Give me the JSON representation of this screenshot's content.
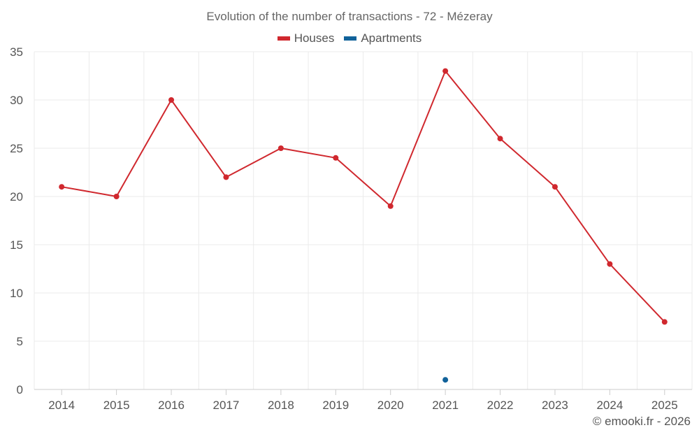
{
  "chart_data": {
    "type": "line",
    "title": "Evolution of the number of transactions - 72 - Mézeray",
    "categories": [
      "2014",
      "2015",
      "2016",
      "2017",
      "2018",
      "2019",
      "2020",
      "2021",
      "2022",
      "2023",
      "2024",
      "2025"
    ],
    "series": [
      {
        "name": "Houses",
        "color": "#d0282e",
        "values": [
          21,
          20,
          30,
          22,
          25,
          24,
          19,
          33,
          26,
          21,
          13,
          7
        ]
      },
      {
        "name": "Apartments",
        "color": "#11629a",
        "values": [
          null,
          null,
          null,
          null,
          null,
          null,
          null,
          1,
          null,
          null,
          null,
          null
        ]
      }
    ],
    "ylim": [
      0,
      35
    ],
    "yticks": [
      0,
      5,
      10,
      15,
      20,
      25,
      30,
      35
    ],
    "grid": true,
    "legend_position": "top-center"
  },
  "credit": "© emooki.fr - 2026"
}
